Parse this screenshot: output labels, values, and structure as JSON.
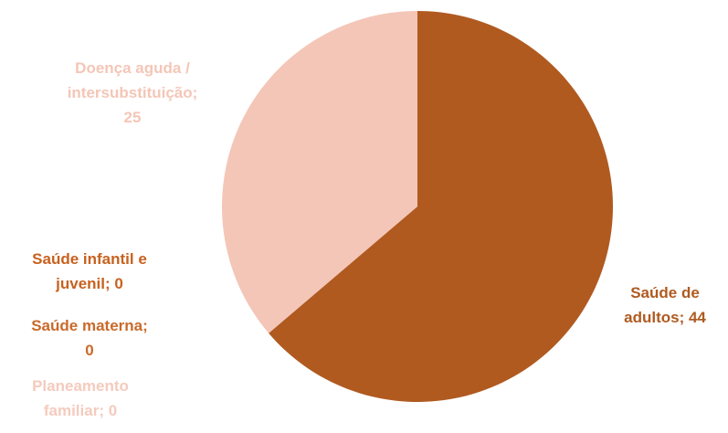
{
  "chart_data": {
    "type": "pie",
    "title": "",
    "start_angle_deg": 0,
    "direction": "clockwise",
    "slices": [
      {
        "label_lines": [
          "Saúde de",
          "adultos; 44"
        ],
        "name": "Saúde de adultos",
        "value": 44,
        "color": "#b05a20",
        "label_color": "#b05a20"
      },
      {
        "label_lines": [
          "Planeamento",
          "familiar; 0"
        ],
        "name": "Planeamento familiar",
        "value": 0,
        "color": "#f4cbbd",
        "label_color": "#f4cbbd"
      },
      {
        "label_lines": [
          "Saúde materna;",
          "0"
        ],
        "name": "Saúde materna",
        "value": 0,
        "color": "#c96a2a",
        "label_color": "#c96a2a"
      },
      {
        "label_lines": [
          "Saúde infantil e",
          "juvenil; 0"
        ],
        "name": "Saúde infantil e juvenil",
        "value": 0,
        "color": "#c8611e",
        "label_color": "#c8611e"
      },
      {
        "label_lines": [
          "Doença aguda /",
          "intersubstituição;",
          "25"
        ],
        "name": "Doença aguda / intersubstituição",
        "value": 25,
        "color": "#f4c6b7",
        "label_color": "#f4c6b7"
      }
    ]
  }
}
